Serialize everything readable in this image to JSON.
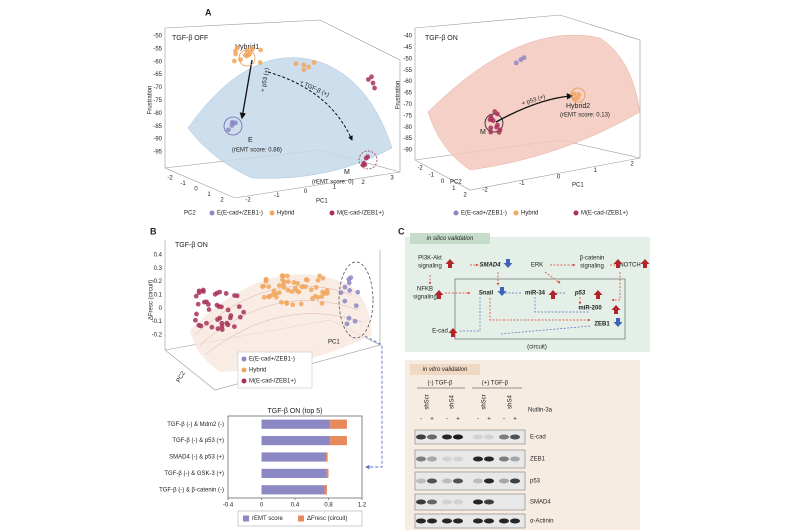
{
  "figure": {
    "a_label": "A",
    "b_label": "B",
    "c_label": "C",
    "a_left": {
      "title": "TGF-β OFF",
      "z_label": "Frustration",
      "z_ticks": [
        "-50",
        "-55",
        "-60",
        "-65",
        "-70",
        "-75",
        "-80",
        "-85",
        "-90",
        "-95"
      ],
      "pc1_label": "PC1",
      "pc1_ticks": [
        "-2",
        "-1",
        "0",
        "1",
        "2",
        "3"
      ],
      "pc2_label": "PC2",
      "pc2_ticks": [
        "-2",
        "-1",
        "0",
        "1",
        "2"
      ],
      "hybrid": "Hybrid1",
      "e": "E",
      "e_score": "(rEMT score: 0.86)",
      "m": "M",
      "m_score": "(rEMT score: 0)",
      "tgf_arrow": "+ TGF-β (+)",
      "p53_arrow": "+ p53 (+)",
      "legend": [
        "E(E-cad+/ZEB1-)",
        "Hybrid",
        "M(E-cad-/ZEB1+)"
      ]
    },
    "a_right": {
      "title": "TGF-β ON",
      "z_label": "Frustration",
      "z_ticks": [
        "-40",
        "-45",
        "-50",
        "-55",
        "-60",
        "-65",
        "-70",
        "-75",
        "-80",
        "-85",
        "-90"
      ],
      "pc1_label": "PC1",
      "pc1_ticks": [
        "-2",
        "-1",
        "0",
        "1",
        "2"
      ],
      "pc2_label": "PC2",
      "pc2_ticks": [
        "-2",
        "-1",
        "0",
        "1",
        "2"
      ],
      "hybrid": "Hybrid2",
      "hybrid_score": "(rEMT score: 0.13)",
      "m": "M",
      "p53_arrow": "+ p53 (+)",
      "legend": [
        "E(E-cad+/ZEB1-)",
        "Hybrid",
        "M(E-cad-/ZEB1+)"
      ]
    },
    "b_3d": {
      "title": "TGF-β ON",
      "z_label": "ΔFresc (circuit)",
      "z_ticks": [
        "0.4",
        "0.3",
        "0.2",
        "0.1",
        "0",
        "-0.1",
        "-0.2"
      ],
      "pc1_label": "PC1",
      "pc2_label": "PC2",
      "legend": [
        "E(E-cad+/ZEB1-)",
        "Hybrid",
        "M(E-cad-/ZEB1+)"
      ]
    },
    "c_silico": {
      "title": "in silico validation",
      "nodes": [
        "PI3K-Akt",
        "signaling",
        "SMAD4",
        "ERK",
        "β-catenin",
        "signaling",
        "NOTCH",
        "NFKB",
        "signaling",
        "Snail",
        "miR-34",
        "p53",
        "miR-200",
        "ZEB1",
        "E-cad"
      ],
      "circuit": "(circuit)"
    },
    "c_vitro": {
      "title": "in vitro validation",
      "groups": [
        "(-) TGF-β",
        "(+) TGF-β"
      ],
      "lanes": [
        "shScr",
        "shS4",
        "shScr",
        "shS4"
      ],
      "treatment": "Nutlin-3a",
      "signs": [
        "-",
        "+",
        "-",
        "+",
        "-",
        "+",
        "-",
        "+"
      ],
      "proteins": [
        "E-cad",
        "ZEB1",
        "p53",
        "SMAD4",
        "α-Actinin"
      ]
    }
  },
  "chart_data": {
    "type": "bar",
    "orientation": "horizontal",
    "stacked": true,
    "title": "TGF-β ON (top 5)",
    "categories": [
      "TGF-β (-) & Mdm2 (-)",
      "TGF-β (-) & p53 (+)",
      "SMAD4 (-) & p53 (+)",
      "TGF-β (-) & GSK-3 (+)",
      "TGF-β (-) & β-catenin (-)"
    ],
    "label_colors": [
      "#222222",
      "#222222",
      "#c0392b",
      "#222222",
      "#222222"
    ],
    "series": [
      {
        "name": "rEMT score",
        "color": "#8c88c4",
        "values": [
          0.82,
          0.82,
          0.77,
          0.78,
          0.78
        ]
      },
      {
        "name": "ΔFresc (circuit)",
        "color": "#e8895c",
        "values": [
          0.2,
          0.2,
          0.02,
          0.02,
          -0.03
        ]
      }
    ],
    "xlim": [
      -0.4,
      1.2
    ],
    "xticks": [
      -0.4,
      0,
      0.4,
      0.8,
      1.2
    ]
  }
}
